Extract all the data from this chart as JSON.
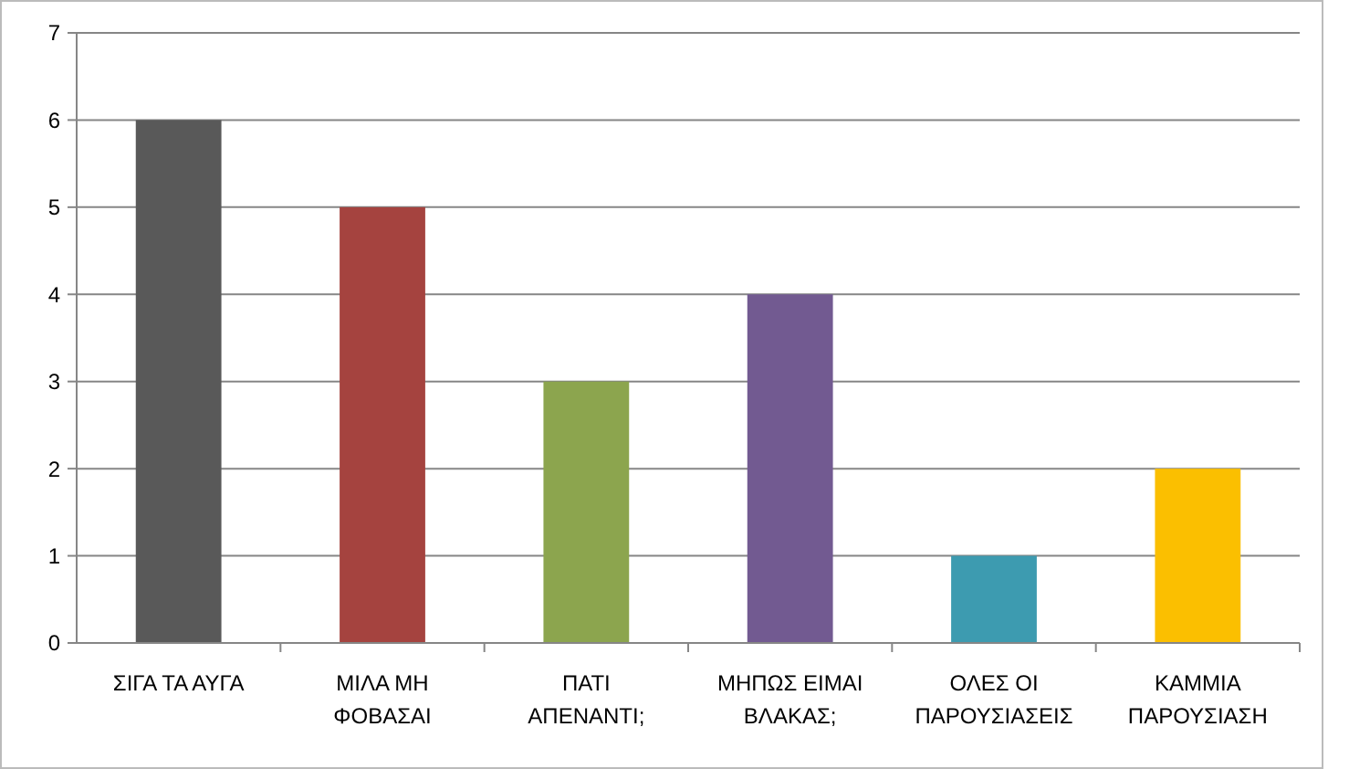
{
  "chart_data": {
    "type": "bar",
    "categories": [
      "ΣΙΓΑ ΤΑ ΑΥΓΑ",
      "ΜΙΛΑ ΜΗ ΦΟΒΑΣΑΙ",
      "ΠΑΤΙ ΑΠΕΝΑΝΤΙ;",
      "ΜΗΠΩΣ ΕΙΜΑΙ ΒΛΑΚΑΣ;",
      "ΟΛΕΣ ΟΙ ΠΑΡΟΥΣΙΑΣΕΙΣ",
      "ΚΑΜΜΙΑ ΠΑΡΟΥΣΙΑΣΗ"
    ],
    "values": [
      6,
      5,
      3,
      4,
      1,
      2
    ],
    "colors": [
      "#595959",
      "#a5433f",
      "#8ca54e",
      "#725a91",
      "#3d9bb0",
      "#fbbf00"
    ],
    "ylim": [
      0,
      7
    ],
    "yticks": [
      0,
      1,
      2,
      3,
      4,
      5,
      6,
      7
    ],
    "grid": "y"
  }
}
